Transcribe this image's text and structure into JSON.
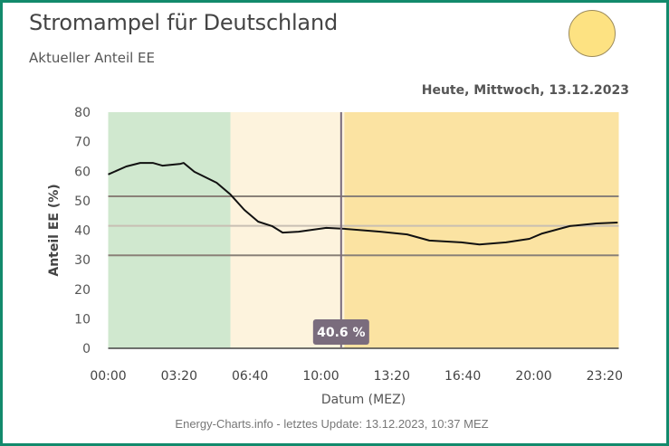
{
  "header": {
    "title": "Stromampel für Deutschland",
    "subtitle": "Aktueller Anteil EE",
    "date_label": "Heute, Mittwoch, 13.12.2023",
    "status_light_color": "#fde282"
  },
  "footer": {
    "text": "Energy-Charts.info - letztes Update: 13.12.2023, 10:37 MEZ"
  },
  "chart_data": {
    "type": "line",
    "title": "Heute, Mittwoch, 13.12.2023",
    "xlabel": "Datum (MEZ)",
    "ylabel": "Anteil EE (%)",
    "ylim": [
      0,
      80
    ],
    "xlim_hours": [
      0,
      24
    ],
    "yticks": [
      0,
      10,
      20,
      30,
      40,
      50,
      60,
      70,
      80
    ],
    "xticks": [
      {
        "h": 0,
        "label": "00:00"
      },
      {
        "h": 3.333,
        "label": "03:20"
      },
      {
        "h": 6.667,
        "label": "06:40"
      },
      {
        "h": 10,
        "label": "10:00"
      },
      {
        "h": 13.333,
        "label": "13:20"
      },
      {
        "h": 16.667,
        "label": "16:40"
      },
      {
        "h": 20,
        "label": "20:00"
      },
      {
        "h": 23.333,
        "label": "23:20"
      }
    ],
    "bands": [
      {
        "name": "green",
        "from_h": 0,
        "to_h": 5.75,
        "color": "#d0e8cf"
      },
      {
        "name": "light-yellow",
        "from_h": 5.75,
        "to_h": 11.1,
        "color": "#fdf3dd"
      },
      {
        "name": "orange",
        "from_h": 11.1,
        "to_h": 24,
        "color": "#fbe3a2"
      }
    ],
    "reference_lines": [
      {
        "value": 51.5,
        "color": "#8a8178"
      },
      {
        "value": 41.5,
        "color": "#c8bfb3"
      },
      {
        "value": 31.5,
        "color": "#8a8178"
      }
    ],
    "cursor": {
      "h": 10.95,
      "label": "40.6 %",
      "color": "#7a6c7d"
    },
    "series": [
      {
        "name": "Anteil EE",
        "x_hours": [
          0,
          0.85,
          1.5,
          2.1,
          2.55,
          3.4,
          3.55,
          4.05,
          5.1,
          5.75,
          6.4,
          7.05,
          7.7,
          8.2,
          8.95,
          10.25,
          11.1,
          12.8,
          14.05,
          15.1,
          16.6,
          17.45,
          18.7,
          19.8,
          20.4,
          21.7,
          22.95,
          23.95
        ],
        "values": [
          58.9,
          61.6,
          62.8,
          62.8,
          61.9,
          62.5,
          62.8,
          59.8,
          56.1,
          52.1,
          46.9,
          42.9,
          41.4,
          39.2,
          39.5,
          40.8,
          40.5,
          39.5,
          38.6,
          36.5,
          35.9,
          35.2,
          35.9,
          37.1,
          38.9,
          41.4,
          42.3,
          42.6
        ]
      }
    ]
  }
}
